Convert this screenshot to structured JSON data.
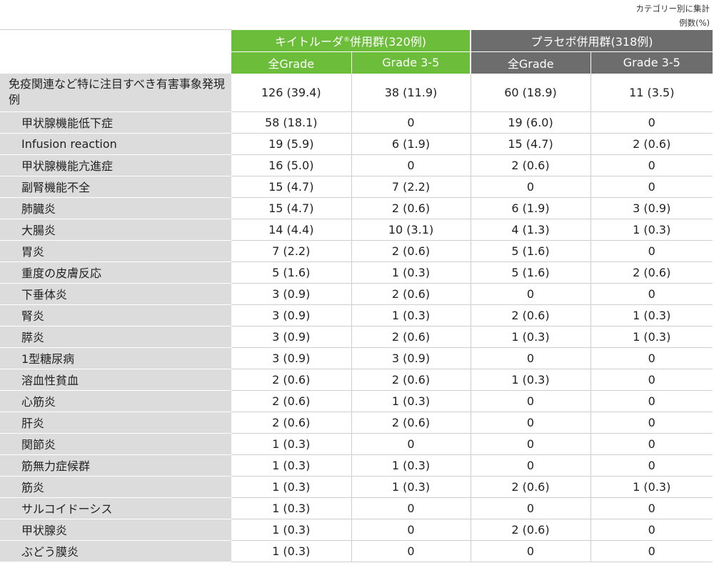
{
  "note": {
    "line1": "カテゴリー別に集計",
    "line2": "例数(%)"
  },
  "colors": {
    "keytruda_header": "#6cbd3a",
    "placebo_header": "#6d6d6d",
    "label_bg": "#dcdcdc"
  },
  "header": {
    "group1": {
      "name": "キイトルーダ",
      "reg": "®",
      "suffix": "併用群(320例)"
    },
    "group2": "プラセボ併用群(318例)",
    "sub": [
      "全Grade",
      "Grade 3-5",
      "全Grade",
      "Grade 3-5"
    ]
  },
  "rows": [
    {
      "label": "免疫関連など特に注目すべき有害事象発現例",
      "values": [
        "126 (39.4)",
        "38 (11.9)",
        "60 (18.9)",
        "11 (3.5)"
      ]
    },
    {
      "label": "甲状腺機能低下症",
      "values": [
        "58 (18.1)",
        "0",
        "19 (6.0)",
        "0"
      ]
    },
    {
      "label": "Infusion reaction",
      "values": [
        "19 (5.9)",
        "6 (1.9)",
        "15 (4.7)",
        "2 (0.6)"
      ]
    },
    {
      "label": "甲状腺機能亢進症",
      "values": [
        "16 (5.0)",
        "0",
        "2 (0.6)",
        "0"
      ]
    },
    {
      "label": "副腎機能不全",
      "values": [
        "15 (4.7)",
        "7 (2.2)",
        "0",
        "0"
      ]
    },
    {
      "label": "肺臓炎",
      "values": [
        "15 (4.7)",
        "2 (0.6)",
        "6 (1.9)",
        "3 (0.9)"
      ]
    },
    {
      "label": "大腸炎",
      "values": [
        "14 (4.4)",
        "10 (3.1)",
        "4 (1.3)",
        "1 (0.3)"
      ]
    },
    {
      "label": "胃炎",
      "values": [
        "7 (2.2)",
        "2 (0.6)",
        "5 (1.6)",
        "0"
      ]
    },
    {
      "label": "重度の皮膚反応",
      "values": [
        "5 (1.6)",
        "1 (0.3)",
        "5 (1.6)",
        "2 (0.6)"
      ]
    },
    {
      "label": "下垂体炎",
      "values": [
        "3 (0.9)",
        "2 (0.6)",
        "0",
        "0"
      ]
    },
    {
      "label": "腎炎",
      "values": [
        "3 (0.9)",
        "1 (0.3)",
        "2 (0.6)",
        "1 (0.3)"
      ]
    },
    {
      "label": "膵炎",
      "values": [
        "3 (0.9)",
        "2 (0.6)",
        "1 (0.3)",
        "1 (0.3)"
      ]
    },
    {
      "label": "1型糖尿病",
      "values": [
        "3 (0.9)",
        "3 (0.9)",
        "0",
        "0"
      ]
    },
    {
      "label": "溶血性貧血",
      "values": [
        "2 (0.6)",
        "2 (0.6)",
        "1 (0.3)",
        "0"
      ]
    },
    {
      "label": "心筋炎",
      "values": [
        "2 (0.6)",
        "1 (0.3)",
        "0",
        "0"
      ]
    },
    {
      "label": "肝炎",
      "values": [
        "2 (0.6)",
        "2 (0.6)",
        "0",
        "0"
      ]
    },
    {
      "label": "関節炎",
      "values": [
        "1 (0.3)",
        "0",
        "0",
        "0"
      ]
    },
    {
      "label": "筋無力症候群",
      "values": [
        "1 (0.3)",
        "1 (0.3)",
        "0",
        "0"
      ]
    },
    {
      "label": "筋炎",
      "values": [
        "1 (0.3)",
        "1 (0.3)",
        "2 (0.6)",
        "1 (0.3)"
      ]
    },
    {
      "label": "サルコイドーシス",
      "values": [
        "1 (0.3)",
        "0",
        "0",
        "0"
      ]
    },
    {
      "label": "甲状腺炎",
      "values": [
        "1 (0.3)",
        "0",
        "2 (0.6)",
        "0"
      ]
    },
    {
      "label": "ぶどう膜炎",
      "values": [
        "1 (0.3)",
        "0",
        "0",
        "0"
      ]
    }
  ]
}
